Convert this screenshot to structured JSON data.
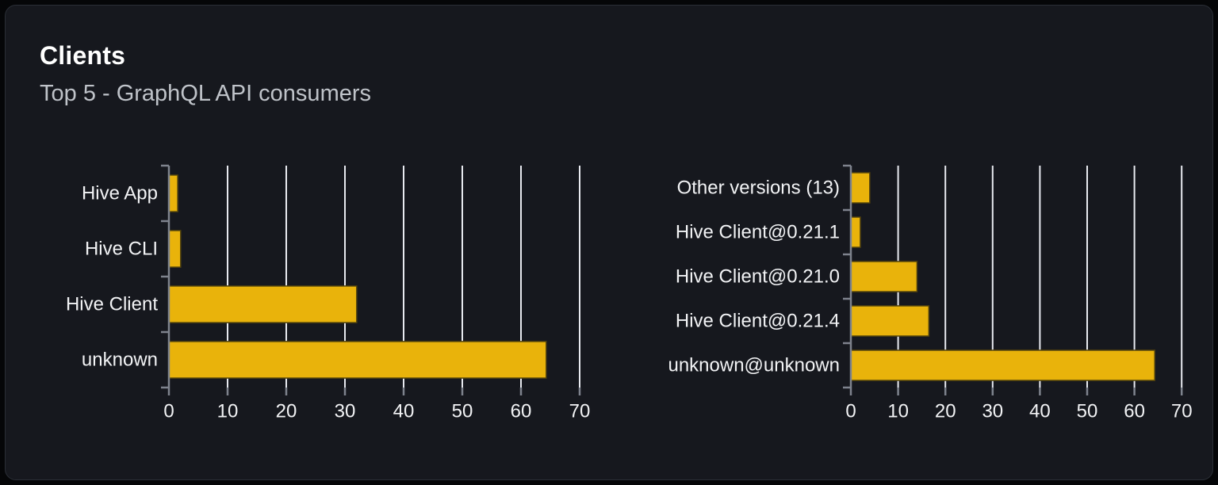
{
  "card": {
    "title": "Clients",
    "subtitle": "Top 5 - GraphQL API consumers"
  },
  "colors": {
    "page_background": "#050608",
    "card_background": "#16181e",
    "card_border": "#2a2e36",
    "title_text": "#ffffff",
    "subtitle_text": "#bfc3c9",
    "label_text": "#f2f3f5",
    "bar_fill": "#e9b30b",
    "bar_border": "#52430d",
    "gridline": "#e8eaf0",
    "axis": "#7e838d"
  },
  "chart_data": [
    {
      "type": "bar",
      "orientation": "horizontal",
      "title": "",
      "categories": [
        "Hive App",
        "Hive CLI",
        "Hive Client",
        "unknown"
      ],
      "values": [
        1.5,
        2,
        32,
        64.3
      ],
      "xlabel": "",
      "ylabel": "",
      "xlim": [
        0,
        70
      ],
      "xticks": [
        0,
        10,
        20,
        30,
        40,
        50,
        60,
        70
      ],
      "grid": true,
      "legend": false
    },
    {
      "type": "bar",
      "orientation": "horizontal",
      "title": "",
      "categories": [
        "Other versions (13)",
        "Hive Client@0.21.1",
        "Hive Client@0.21.0",
        "Hive Client@0.21.4",
        "unknown@unknown"
      ],
      "values": [
        4,
        2,
        14,
        16.5,
        64.3
      ],
      "xlabel": "",
      "ylabel": "",
      "xlim": [
        0,
        70
      ],
      "xticks": [
        0,
        10,
        20,
        30,
        40,
        50,
        60,
        70
      ],
      "grid": true,
      "legend": false
    }
  ]
}
